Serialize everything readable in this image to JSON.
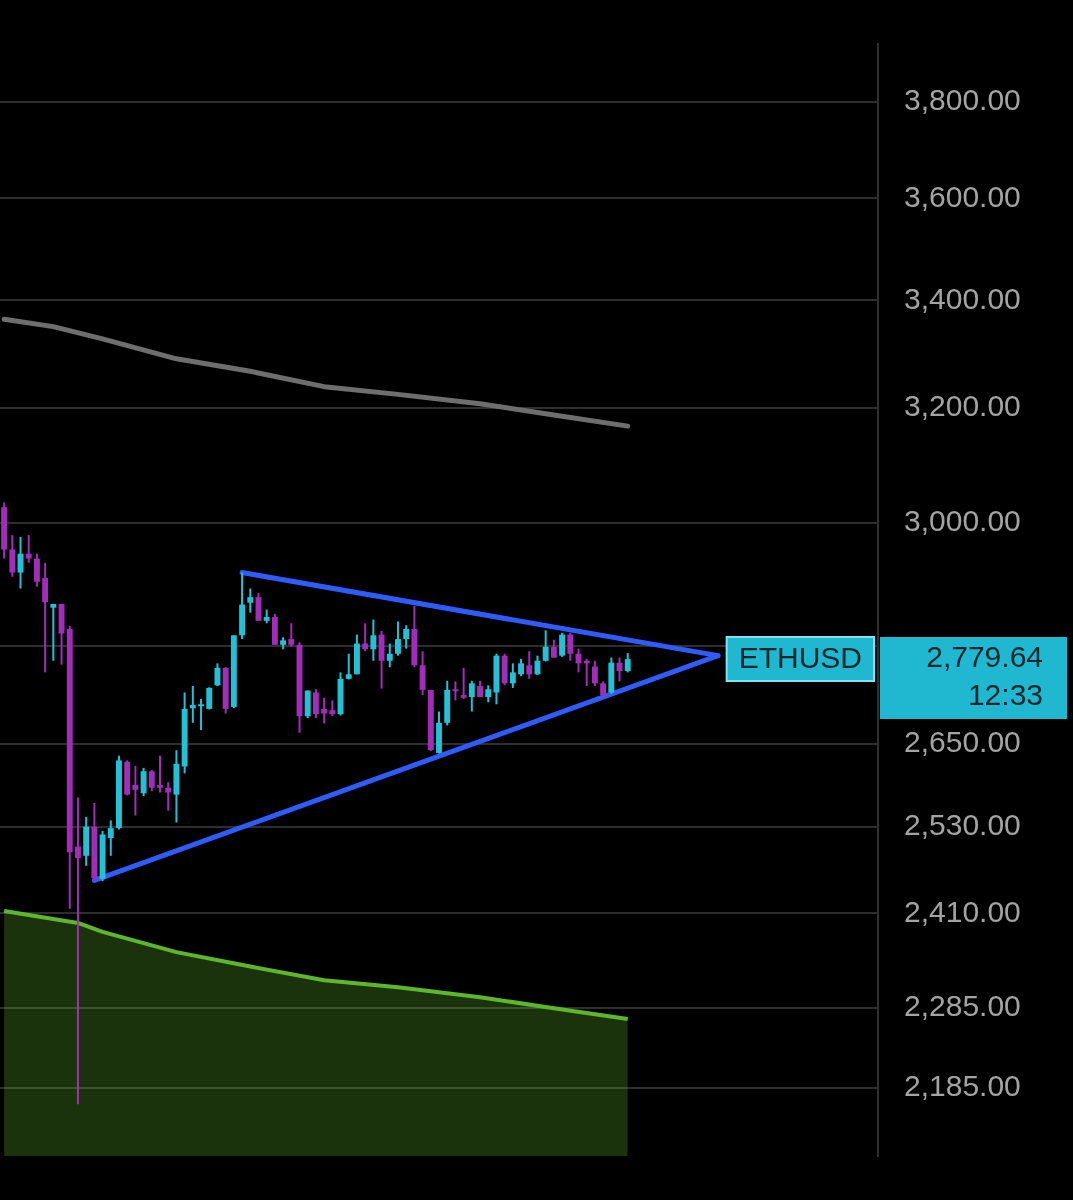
{
  "chart_data": {
    "type": "candlestick",
    "log": true,
    "grid": "y",
    "tick_labels": "y",
    "categories": [
      null,
      null,
      null,
      null,
      null,
      null,
      null,
      null,
      null,
      null,
      null,
      null,
      null,
      null,
      null,
      null,
      null,
      null,
      null,
      null,
      null,
      null,
      null,
      null,
      null,
      null,
      null,
      null,
      null,
      null,
      null,
      null,
      null,
      null,
      null,
      null,
      null,
      null,
      null,
      null,
      null,
      null,
      null,
      null,
      null,
      null,
      null,
      null,
      null,
      null,
      null,
      null,
      null,
      null,
      null,
      null,
      null,
      null,
      null,
      null,
      null,
      null,
      null,
      null,
      null,
      null,
      null,
      null,
      null,
      null,
      null,
      null,
      null,
      null,
      null,
      null,
      null,
      null,
      null,
      null,
      null,
      null,
      null,
      null,
      null,
      null,
      null,
      null,
      null,
      null,
      null,
      null,
      null,
      null,
      null,
      null,
      null,
      null,
      null,
      null,
      null,
      null,
      null,
      null,
      null,
      null,
      null
    ],
    "ylim": [
      2103,
      3926
    ],
    "yticks": [
      {
        "value": 2185,
        "label": "2,185.00"
      },
      {
        "value": 2285,
        "label": "2,285.00"
      },
      {
        "value": 2410,
        "label": "2,410.00"
      },
      {
        "value": 2530,
        "label": "2,530.00"
      },
      {
        "value": 2650,
        "label": "2,650.00"
      },
      {
        "value": 2800,
        "label": null
      },
      {
        "value": 3000,
        "label": "3,000.00"
      },
      {
        "value": 3200,
        "label": "3,200.00"
      },
      {
        "value": 3400,
        "label": "3,400.00"
      },
      {
        "value": 3600,
        "label": "3,600.00"
      },
      {
        "value": 3800,
        "label": "3,800.00"
      }
    ],
    "annotations": [
      "ETHUSD",
      "2,779.64",
      "12:33"
    ],
    "ohlc": [
      [
        3027,
        3035,
        2941,
        2956
      ],
      [
        2956,
        2980,
        2911,
        2918
      ],
      [
        2918,
        2977,
        2892,
        2949
      ],
      [
        2949,
        2980,
        2934,
        2941
      ],
      [
        2941,
        2949,
        2895,
        2903
      ],
      [
        2909,
        2934,
        2759,
        2870
      ],
      [
        2861,
        2867,
        2777,
        2867
      ],
      [
        2867,
        2867,
        2771,
        2820
      ],
      [
        2827,
        2832,
        2416,
        2494
      ],
      [
        2502,
        2572,
        2165,
        2486
      ],
      [
        2489,
        2544,
        2475,
        2530
      ],
      [
        2530,
        2564,
        2454,
        2458
      ],
      [
        2457,
        2524,
        2454,
        2519
      ],
      [
        2514,
        2539,
        2489,
        2528
      ],
      [
        2528,
        2633,
        2526,
        2626
      ],
      [
        2624,
        2626,
        2575,
        2576
      ],
      [
        2590,
        2618,
        2546,
        2583
      ],
      [
        2578,
        2615,
        2574,
        2610
      ],
      [
        2610,
        2612,
        2581,
        2586
      ],
      [
        2590,
        2633,
        2579,
        2586
      ],
      [
        2586,
        2594,
        2553,
        2579
      ],
      [
        2576,
        2641,
        2536,
        2621
      ],
      [
        2617,
        2728,
        2607,
        2703
      ],
      [
        2704,
        2738,
        2682,
        2709
      ],
      [
        2708,
        2718,
        2671,
        2710
      ],
      [
        2703,
        2736,
        2702,
        2735
      ],
      [
        2739,
        2773,
        2738,
        2766
      ],
      [
        2766,
        2767,
        2696,
        2703
      ],
      [
        2706,
        2817,
        2704,
        2817
      ],
      [
        2817,
        2918,
        2811,
        2866
      ],
      [
        2869,
        2892,
        2853,
        2878
      ],
      [
        2878,
        2885,
        2840,
        2840
      ],
      [
        2840,
        2858,
        2836,
        2846
      ],
      [
        2846,
        2851,
        2802,
        2802
      ],
      [
        2802,
        2814,
        2795,
        2809
      ],
      [
        2811,
        2836,
        2799,
        2802
      ],
      [
        2802,
        2806,
        2667,
        2692
      ],
      [
        2692,
        2731,
        2689,
        2731
      ],
      [
        2728,
        2733,
        2689,
        2695
      ],
      [
        2703,
        2720,
        2681,
        2696
      ],
      [
        2701,
        2716,
        2692,
        2695
      ],
      [
        2695,
        2759,
        2693,
        2749
      ],
      [
        2749,
        2788,
        2748,
        2756
      ],
      [
        2756,
        2818,
        2756,
        2804
      ],
      [
        2804,
        2836,
        2792,
        2795
      ],
      [
        2795,
        2842,
        2777,
        2817
      ],
      [
        2818,
        2824,
        2734,
        2777
      ],
      [
        2777,
        2804,
        2767,
        2788
      ],
      [
        2788,
        2839,
        2785,
        2811
      ],
      [
        2811,
        2833,
        2796,
        2827
      ],
      [
        2827,
        2864,
        2767,
        2770
      ],
      [
        2770,
        2792,
        2724,
        2732
      ],
      [
        2732,
        2732,
        2640,
        2641
      ],
      [
        2637,
        2699,
        2636,
        2682
      ],
      [
        2682,
        2746,
        2678,
        2732
      ],
      [
        2733,
        2745,
        2716,
        2731
      ],
      [
        2724,
        2766,
        2718,
        2720
      ],
      [
        2721,
        2746,
        2699,
        2742
      ],
      [
        2738,
        2746,
        2721,
        2721
      ],
      [
        2721,
        2739,
        2713,
        2733
      ],
      [
        2728,
        2788,
        2710,
        2785
      ],
      [
        2785,
        2788,
        2739,
        2742
      ],
      [
        2742,
        2773,
        2735,
        2759
      ],
      [
        2756,
        2780,
        2753,
        2773
      ],
      [
        2770,
        2792,
        2749,
        2756
      ],
      [
        2756,
        2785,
        2755,
        2777
      ],
      [
        2777,
        2825,
        2776,
        2799
      ],
      [
        2799,
        2810,
        2782,
        2782
      ],
      [
        2785,
        2821,
        2783,
        2818
      ],
      [
        2818,
        2821,
        2777,
        2788
      ],
      [
        2788,
        2796,
        2759,
        2773
      ],
      [
        2777,
        2780,
        2738,
        2773
      ],
      [
        2768,
        2777,
        2738,
        2742
      ],
      [
        2742,
        2745,
        2721,
        2724
      ],
      [
        2728,
        2782,
        2726,
        2774
      ],
      [
        2774,
        2782,
        2745,
        2761
      ],
      [
        2761,
        2789,
        2759,
        2779.64
      ],
      null,
      null,
      null,
      null,
      null,
      null,
      null,
      null,
      null,
      null,
      null,
      null,
      null,
      null,
      null,
      null,
      null,
      null,
      null,
      null,
      null,
      null,
      null,
      null,
      null,
      null,
      null,
      null,
      null,
      null
    ],
    "colors": [
      "#a12db8",
      "#a12db8",
      "#22c1d6",
      "#a12db8",
      "#a12db8",
      "#a12db8",
      "#22c1d6",
      "#a12db8",
      "#a12db8",
      "#a12db8",
      "#22c1d6",
      "#a12db8",
      "#22c1d6",
      "#22c1d6",
      "#22c1d6",
      "#a12db8",
      "#a12db8",
      "#22c1d6",
      "#a12db8",
      "#a12db8",
      "#a12db8",
      "#22c1d6",
      "#22c1d6",
      "#22c1d6",
      "#22c1d6",
      "#22c1d6",
      "#22c1d6",
      "#a12db8",
      "#22c1d6",
      "#22c1d6",
      "#22c1d6",
      "#a12db8",
      "#22c1d6",
      "#a12db8",
      "#22c1d6",
      "#a12db8",
      "#a12db8",
      "#22c1d6",
      "#a12db8",
      "#a12db8",
      "#a12db8",
      "#22c1d6",
      "#22c1d6",
      "#22c1d6",
      "#a12db8",
      "#22c1d6",
      "#a12db8",
      "#22c1d6",
      "#22c1d6",
      "#22c1d6",
      "#a12db8",
      "#a12db8",
      "#a12db8",
      "#22c1d6",
      "#22c1d6",
      "#a12db8",
      "#a12db8",
      "#22c1d6",
      "#a12db8",
      "#22c1d6",
      "#22c1d6",
      "#a12db8",
      "#22c1d6",
      "#22c1d6",
      "#a12db8",
      "#22c1d6",
      "#22c1d6",
      "#a12db8",
      "#22c1d6",
      "#a12db8",
      "#a12db8",
      "#a12db8",
      "#a12db8",
      "#a12db8",
      "#22c1d6",
      "#a12db8",
      "#22c1d6",
      null,
      null,
      null,
      null,
      null,
      null,
      null,
      null,
      null,
      null,
      null,
      null,
      null,
      null,
      null,
      null,
      null,
      null,
      null,
      null,
      null,
      null,
      null,
      null,
      null,
      null,
      null,
      null,
      null,
      null
    ],
    "series": [
      {
        "type": "line",
        "color": "#6e6e6e",
        "values": [
          3364,
          null,
          null,
          null,
          null,
          null,
          3350,
          null,
          null,
          null,
          null,
          null,
          3327,
          null,
          null,
          null,
          null,
          null,
          null,
          null,
          null,
          3290,
          null,
          null,
          null,
          null,
          null,
          null,
          null,
          null,
          3267,
          null,
          null,
          null,
          null,
          null,
          null,
          null,
          null,
          3239,
          null,
          null,
          null,
          null,
          null,
          null,
          null,
          null,
          3225,
          null,
          null,
          null,
          null,
          null,
          null,
          null,
          null,
          null,
          3208,
          null,
          null,
          null,
          null,
          null,
          null,
          null,
          null,
          3188,
          null,
          null,
          null,
          null,
          null,
          null,
          null,
          null,
          3168,
          null,
          null,
          null,
          null,
          null,
          null,
          null,
          null,
          null,
          null,
          null,
          null,
          null,
          null,
          null,
          null,
          null,
          null,
          null,
          null,
          null,
          null,
          null,
          null,
          null,
          null,
          null,
          null,
          null,
          null
        ]
      },
      {
        "type": "area",
        "color": "#5cb82a",
        "values": [
          2413,
          null,
          null,
          null,
          null,
          null,
          null,
          null,
          null,
          2397,
          null,
          null,
          2385,
          null,
          null,
          null,
          null,
          null,
          null,
          null,
          null,
          2358,
          null,
          null,
          null,
          null,
          null,
          null,
          null,
          null,
          2339,
          null,
          null,
          null,
          null,
          null,
          null,
          null,
          null,
          2321,
          null,
          null,
          null,
          null,
          null,
          null,
          null,
          null,
          2312,
          null,
          null,
          null,
          null,
          null,
          null,
          null,
          null,
          null,
          2299,
          null,
          null,
          null,
          null,
          null,
          null,
          null,
          null,
          2285,
          null,
          null,
          null,
          null,
          null,
          null,
          null,
          null,
          2271,
          null,
          null,
          null,
          null,
          null,
          null,
          null,
          null,
          null,
          null,
          null,
          null,
          null,
          null,
          null,
          null,
          null,
          null,
          null,
          null,
          null,
          null,
          null,
          null,
          null,
          null,
          null,
          null,
          null,
          null
        ]
      },
      {
        "type": "line",
        "color": "#2e5cff",
        "values": [
          null,
          null,
          null,
          null,
          null,
          null,
          null,
          null,
          null,
          null,
          null,
          null,
          null,
          null,
          null,
          null,
          null,
          null,
          null,
          null,
          null,
          null,
          null,
          null,
          null,
          null,
          null,
          null,
          null,
          2918,
          null,
          null,
          null,
          null,
          null,
          null,
          null,
          null,
          null,
          null,
          null,
          null,
          null,
          null,
          null,
          null,
          null,
          null,
          null,
          null,
          null,
          null,
          null,
          null,
          null,
          null,
          null,
          null,
          null,
          null,
          null,
          null,
          null,
          null,
          null,
          null,
          null,
          null,
          null,
          null,
          null,
          null,
          null,
          null,
          null,
          null,
          null,
          null,
          null,
          null,
          null,
          null,
          null,
          null,
          null,
          null,
          null,
          2785,
          null,
          null,
          null,
          null,
          null,
          null,
          null,
          null,
          null,
          null,
          null,
          null,
          null,
          null,
          null,
          null,
          null,
          null,
          null
        ]
      },
      {
        "type": "line",
        "color": "#2e5cff",
        "values": [
          null,
          null,
          null,
          null,
          null,
          null,
          null,
          null,
          null,
          null,
          null,
          2455,
          null,
          null,
          null,
          null,
          null,
          null,
          null,
          null,
          null,
          null,
          null,
          null,
          null,
          null,
          null,
          null,
          null,
          null,
          null,
          null,
          null,
          null,
          null,
          null,
          null,
          null,
          null,
          null,
          null,
          null,
          null,
          null,
          null,
          null,
          null,
          null,
          null,
          null,
          null,
          null,
          null,
          null,
          null,
          null,
          null,
          null,
          null,
          null,
          null,
          null,
          null,
          null,
          null,
          null,
          null,
          null,
          null,
          null,
          null,
          null,
          null,
          null,
          null,
          null,
          null,
          null,
          null,
          null,
          null,
          null,
          null,
          null,
          null,
          null,
          null,
          2785,
          null,
          null,
          null,
          null,
          null,
          null,
          null,
          null,
          null,
          null,
          null,
          null,
          null,
          null,
          null,
          null,
          null,
          null,
          null
        ]
      }
    ]
  }
}
